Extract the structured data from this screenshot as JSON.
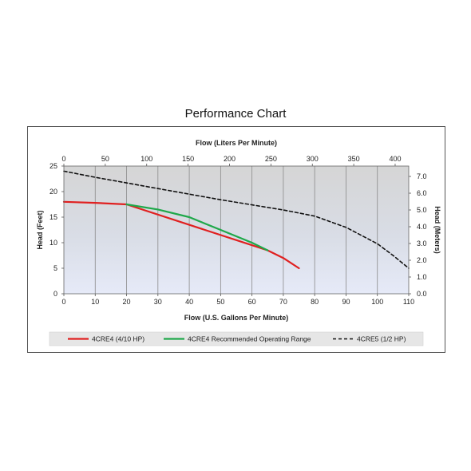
{
  "chart_data": {
    "type": "line",
    "title": "Performance Chart",
    "xlabel": "Flow (U.S. Gallons Per Minute)",
    "x2label": "Flow (Liters Per Minute)",
    "ylabel": "Head (Feet)",
    "y2label": "Head (Meters)",
    "xlim": [
      0,
      110
    ],
    "ylim": [
      0,
      25
    ],
    "x2lim": [
      0,
      416.4
    ],
    "y2lim": [
      0,
      7.62
    ],
    "x_ticks": [
      0,
      10,
      20,
      30,
      40,
      50,
      60,
      70,
      80,
      90,
      100,
      110
    ],
    "y_ticks": [
      0,
      5,
      10,
      15,
      20,
      25
    ],
    "x2_ticks": [
      0,
      50,
      100,
      150,
      200,
      250,
      300,
      350,
      400
    ],
    "y2_ticks": [
      "0.0",
      "1.0",
      "2.0",
      "3.0",
      "4.0",
      "5.0",
      "6.0",
      "7.0"
    ],
    "grid": "vertical",
    "legend_position": "bottom",
    "series": [
      {
        "name": "4CRE4 (4/10 HP)",
        "color": "#e02020",
        "style": "solid",
        "x": [
          0,
          10,
          20,
          65,
          70,
          75
        ],
        "y": [
          18,
          17.8,
          17.5,
          8.5,
          7,
          5
        ]
      },
      {
        "name": "4CRE4 Recommended Operating Range",
        "color": "#1fa84a",
        "style": "solid",
        "x": [
          20,
          30,
          40,
          50,
          60,
          65
        ],
        "y": [
          17.5,
          16.5,
          15,
          12.5,
          10,
          8.5
        ]
      },
      {
        "name": "4CRE5 (1/2 HP)",
        "color": "#111111",
        "style": "dashed",
        "x": [
          0,
          10,
          20,
          30,
          40,
          50,
          60,
          70,
          80,
          90,
          100,
          105,
          110
        ],
        "y": [
          24,
          22.8,
          21.7,
          20.6,
          19.5,
          18.4,
          17.4,
          16.4,
          15.2,
          13,
          9.8,
          7.5,
          5
        ]
      }
    ]
  }
}
